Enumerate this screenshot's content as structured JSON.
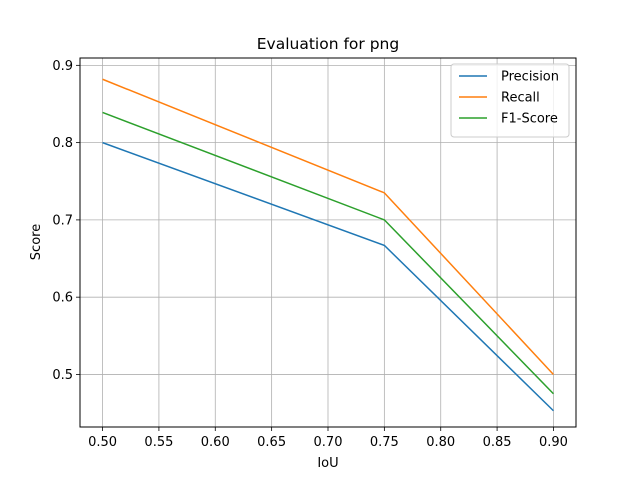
{
  "chart_data": {
    "type": "line",
    "title": "Evaluation for png",
    "xlabel": "IoU",
    "ylabel": "Score",
    "x": [
      0.5,
      0.75,
      0.9
    ],
    "xlim": [
      0.48,
      0.92
    ],
    "ylim": [
      0.432,
      0.9095
    ],
    "xticks": [
      "0.50",
      "0.55",
      "0.60",
      "0.65",
      "0.70",
      "0.75",
      "0.80",
      "0.85",
      "0.90"
    ],
    "yticks": [
      "0.5",
      "0.6",
      "0.7",
      "0.8",
      "0.9"
    ],
    "grid": true,
    "legend_position": "top-right",
    "series": [
      {
        "name": "Precision",
        "color": "#1f77b4",
        "values": [
          0.8,
          0.667,
          0.453
        ]
      },
      {
        "name": "Recall",
        "color": "#ff7f0e",
        "values": [
          0.882,
          0.735,
          0.5
        ]
      },
      {
        "name": "F1-Score",
        "color": "#2ca02c",
        "values": [
          0.839,
          0.7,
          0.475
        ]
      }
    ]
  }
}
